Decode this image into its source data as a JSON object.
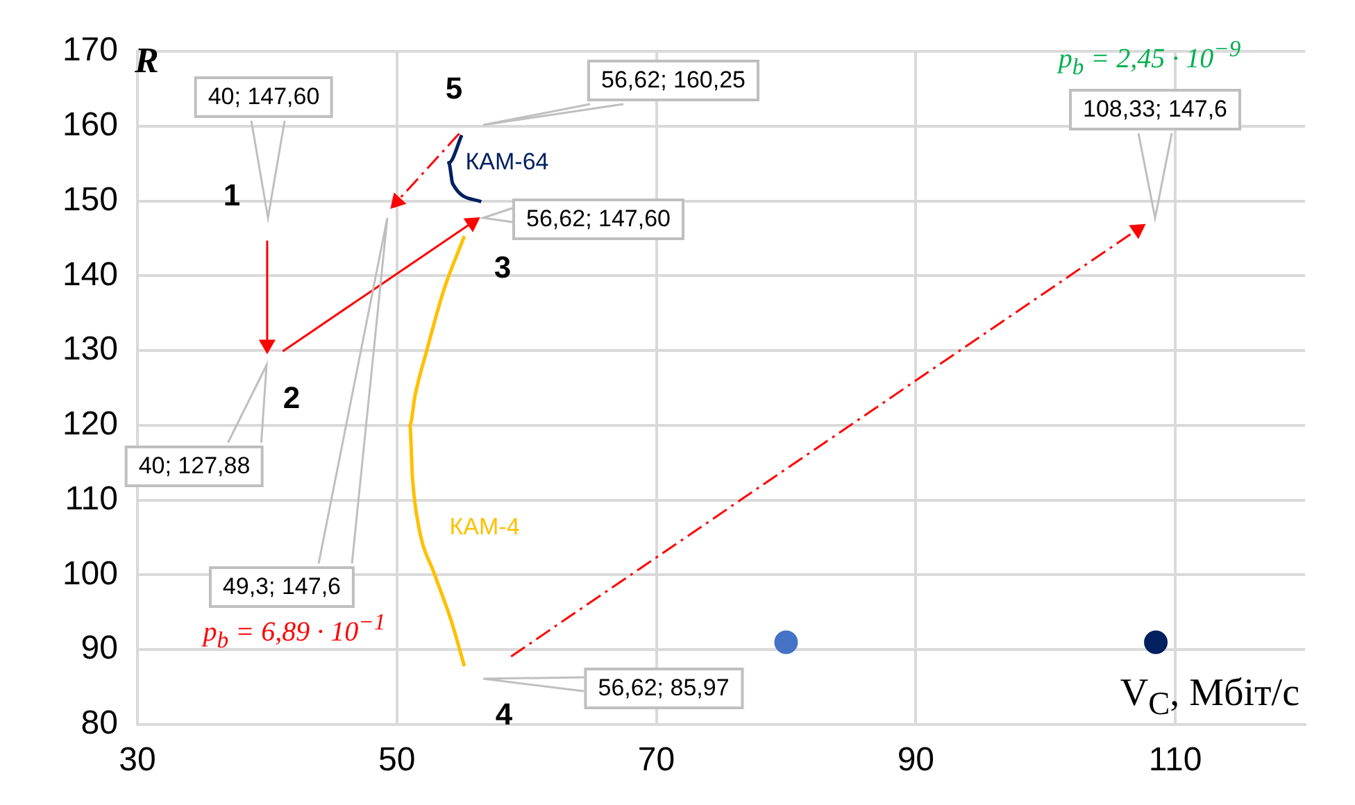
{
  "chart_data": {
    "type": "scatter",
    "xlabel": "V$_{C}$, Мбіт/с",
    "ylabel": "R",
    "xlim": [
      30,
      120
    ],
    "xticks": [
      30,
      50,
      70,
      90,
      110
    ],
    "ylim": [
      80,
      170
    ],
    "yticks": [
      80,
      90,
      100,
      110,
      120,
      130,
      140,
      150,
      160,
      170
    ],
    "grid": true,
    "legend": false,
    "series": [
      {
        "name": "КАМ-64",
        "type": "line",
        "color": "#002060",
        "marker": "none",
        "x": [
          55.0,
          54.0,
          54.3,
          56.5
        ],
        "values": [
          158.8,
          155.1,
          152.3,
          149.9
        ]
      },
      {
        "name": "КАМ-4",
        "type": "line",
        "color": "#ffc000",
        "marker": "none",
        "x": [
          55.2,
          53.6,
          52.3,
          51.4,
          51.0,
          51.2,
          51.7,
          52.9,
          54.2,
          55.2
        ],
        "values": [
          145.3,
          138,
          130,
          124,
          120,
          113,
          106.3,
          100.1,
          93.8,
          87.8
        ]
      },
      {
        "type": "line",
        "color": "#ff0000",
        "marker": "triangle",
        "line_style": "solid",
        "x": [
          40,
          40
        ],
        "values": [
          144.7,
          130.8
        ]
      },
      {
        "type": "line",
        "color": "#ff0000",
        "marker": "triangle",
        "line_style": "solid",
        "x": [
          41.2,
          55.8
        ],
        "values": [
          129.9,
          147.1
        ]
      },
      {
        "type": "line",
        "color": "#ff0000",
        "marker": "triangle",
        "line_style": "dashed",
        "x": [
          54.8,
          50.0
        ],
        "values": [
          159,
          149.9
        ]
      },
      {
        "type": "line",
        "color": "#ff0000",
        "marker": "triangle",
        "line_style": "dashed",
        "x": [
          58.8,
          107.1
        ],
        "values": [
          89.1,
          146.2
        ]
      },
      {
        "type": "scatter",
        "color": "#4472c4",
        "marker": "circle",
        "x": [
          80
        ],
        "values": [
          91
        ]
      },
      {
        "type": "scatter",
        "color": "#002060",
        "marker": "circle",
        "x": [
          108.5
        ],
        "values": [
          91
        ]
      }
    ],
    "annotations": [
      "40; 147,60",
      "40; 127,88",
      "49,3; 147,6",
      "56,62; 160,25",
      "56,62; 147,60",
      "56,62; 85,97",
      "108,33; 147,6",
      "1",
      "2",
      "3",
      "4",
      "5",
      "p$_{b}$ = 6,89 · 10$^{−1}$",
      "p$_{b}$ = 2,45 · 10$^{−9}$"
    ]
  }
}
